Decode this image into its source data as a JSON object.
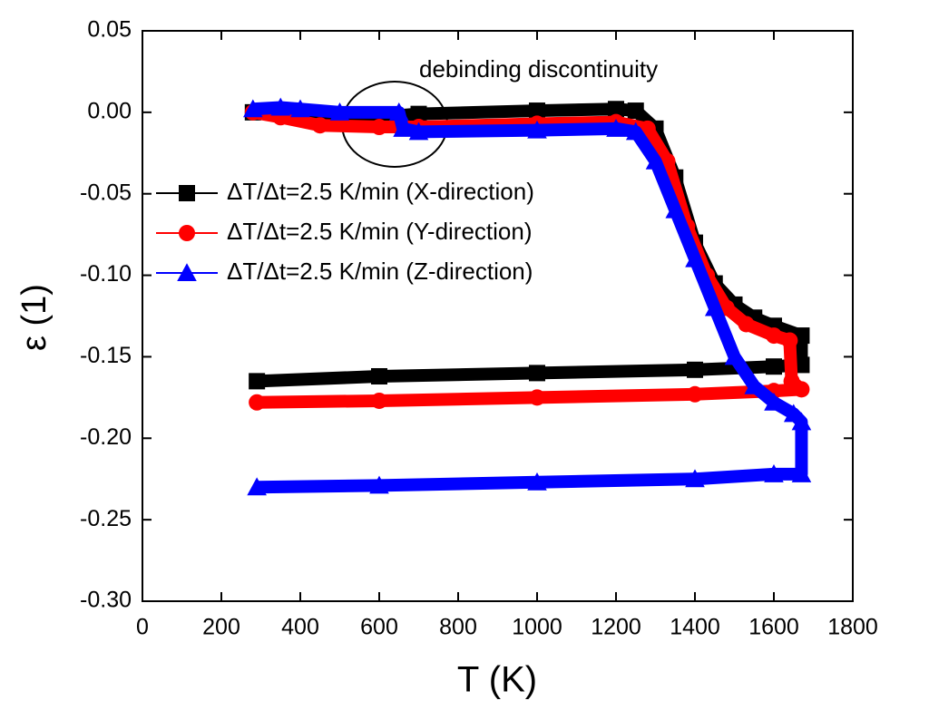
{
  "chart_data": {
    "type": "line",
    "xlabel": "T (K)",
    "ylabel": "ε (1)",
    "annotations": [
      "debinding discontinuity"
    ],
    "xlim": [
      0,
      1800
    ],
    "xticks": [
      0,
      200,
      400,
      600,
      800,
      1000,
      1200,
      1400,
      1600,
      1800
    ],
    "ylim": [
      -0.3,
      0.05
    ],
    "yticks": [
      0.05,
      {
        "value": 0,
        "label": "0.00"
      },
      -0.05,
      {
        "value": -0.1,
        "label": "-0.10"
      },
      -0.15,
      {
        "value": -0.2,
        "label": "-0.20"
      },
      -0.25,
      {
        "value": -0.3,
        "label": "-0.30"
      }
    ],
    "legend_position": "center left",
    "series": [
      {
        "name": "ΔT/Δt=2.5 K/min (X-direction)",
        "color": "#000000",
        "marker": "square",
        "x": [
          280,
          400,
          600,
          700,
          1000,
          1200,
          1250,
          1300,
          1350,
          1400,
          1450,
          1500,
          1550,
          1600,
          1670,
          1670,
          1600,
          1400,
          1000,
          600,
          290
        ],
        "values": [
          0,
          -0.003,
          -0.003,
          -0.001,
          0.001,
          0.002,
          0.001,
          -0.01,
          -0.04,
          -0.08,
          -0.105,
          -0.118,
          -0.126,
          -0.131,
          -0.137,
          -0.155,
          -0.156,
          -0.158,
          -0.16,
          -0.162,
          -0.165
        ]
      },
      {
        "name": "ΔT/Δt=2.5 K/min (Y-direction)",
        "color": "#ff0000",
        "marker": "circle",
        "x": [
          280,
          350,
          450,
          600,
          700,
          1000,
          1200,
          1280,
          1330,
          1380,
          1430,
          1480,
          1530,
          1600,
          1640,
          1645,
          1670,
          1600,
          1400,
          1000,
          600,
          290
        ],
        "values": [
          0,
          -0.003,
          -0.008,
          -0.009,
          -0.009,
          -0.007,
          -0.006,
          -0.01,
          -0.03,
          -0.07,
          -0.1,
          -0.12,
          -0.13,
          -0.137,
          -0.14,
          -0.165,
          -0.17,
          -0.171,
          -0.173,
          -0.175,
          -0.177,
          -0.178
        ]
      },
      {
        "name": "ΔT/Δt=2.5 K/min (Z-direction)",
        "color": "#0000ff",
        "marker": "triangle",
        "x": [
          280,
          350,
          400,
          500,
          650,
          660,
          700,
          1000,
          1200,
          1250,
          1300,
          1350,
          1400,
          1450,
          1500,
          1550,
          1600,
          1650,
          1670,
          1670,
          1600,
          1400,
          1000,
          600,
          290
        ],
        "values": [
          0.002,
          0.003,
          0.002,
          0,
          0,
          -0.01,
          -0.012,
          -0.011,
          -0.01,
          -0.012,
          -0.03,
          -0.06,
          -0.09,
          -0.12,
          -0.15,
          -0.168,
          -0.178,
          -0.185,
          -0.19,
          -0.222,
          -0.222,
          -0.225,
          -0.227,
          -0.229,
          -0.23
        ]
      }
    ]
  }
}
